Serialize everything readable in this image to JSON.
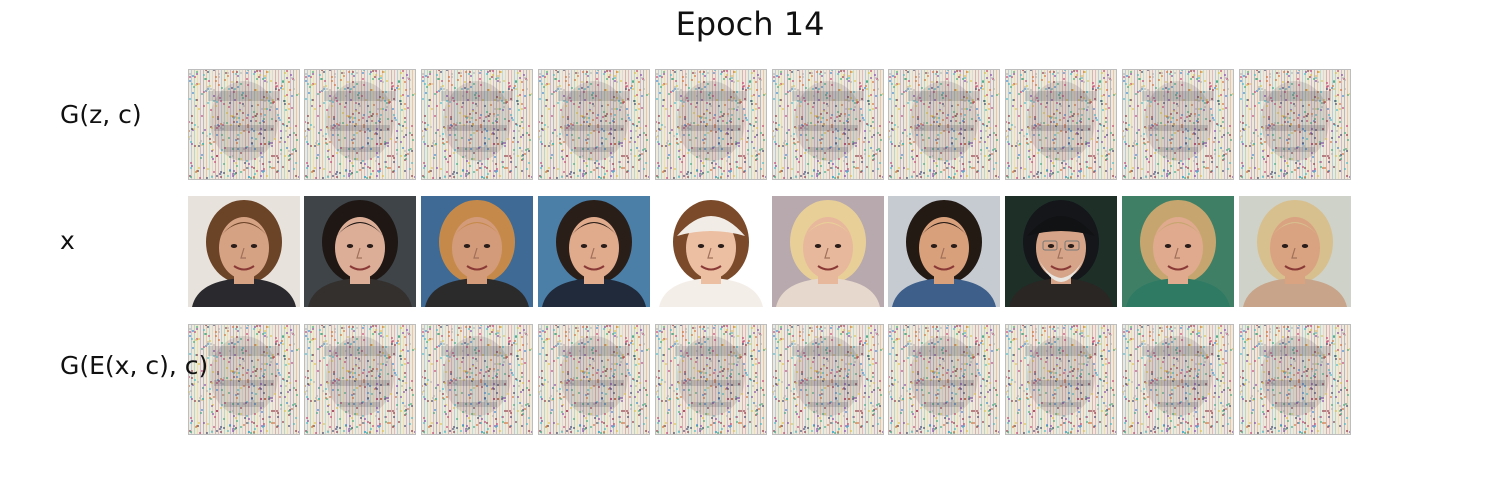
{
  "title": "Epoch 14",
  "rows": [
    {
      "label": "G(z, c)",
      "kind": "generated-samples",
      "tiles": [
        {
          "icon": "noisy-generated-face"
        },
        {
          "icon": "noisy-generated-face"
        },
        {
          "icon": "noisy-generated-face"
        },
        {
          "icon": "noisy-generated-face"
        },
        {
          "icon": "noisy-generated-face"
        },
        {
          "icon": "noisy-generated-face"
        },
        {
          "icon": "noisy-generated-face"
        },
        {
          "icon": "noisy-generated-face"
        },
        {
          "icon": "noisy-generated-face"
        },
        {
          "icon": "noisy-generated-face"
        }
      ]
    },
    {
      "label": "x",
      "kind": "real-photos",
      "tiles": [
        {
          "icon": "face-photo",
          "background": "#e8e2dc",
          "hair": "#6b4327",
          "skin": "#d6a284",
          "clothing": "#2a2a2e"
        },
        {
          "icon": "face-photo",
          "background": "#3e4448",
          "hair": "#1e1714",
          "skin": "#dcae98",
          "clothing": "#34302e"
        },
        {
          "icon": "face-photo",
          "background": "#3f6a95",
          "hair": "#c58a4a",
          "skin": "#d39b7a",
          "clothing": "#2b2b2b"
        },
        {
          "icon": "face-photo",
          "background": "#4b7fa8",
          "hair": "#2a1e18",
          "skin": "#e0aa8c",
          "clothing": "#202a3a"
        },
        {
          "icon": "face-photo",
          "background": "#ffffff",
          "hair": "#7a4a2a",
          "skin": "#ecbfa2",
          "clothing": "#f4eee8",
          "hat": "#f2ece6"
        },
        {
          "icon": "face-photo",
          "background": "#b7a9ad",
          "hair": "#e8cf98",
          "skin": "#e8b89c",
          "clothing": "#e6d8cc"
        },
        {
          "icon": "face-photo",
          "background": "#c6cbd2",
          "hair": "#241a14",
          "skin": "#d9a07c",
          "clothing": "#3d5f8a"
        },
        {
          "icon": "face-photo",
          "background": "#1e2f28",
          "hair": "#14161a",
          "skin": "#d6a488",
          "clothing": "#2a2624",
          "beard": "#e9e6e2",
          "hat": "#101214"
        },
        {
          "icon": "face-photo",
          "background": "#3f7f66",
          "hair": "#c6a66e",
          "skin": "#dfaa8e",
          "clothing": "#2e7a63"
        },
        {
          "icon": "face-photo",
          "background": "#cfd2c8",
          "hair": "#d8bf8e",
          "skin": "#d9a381",
          "clothing": "#c7a48a"
        }
      ]
    },
    {
      "label": "G(E(x, c), c)",
      "kind": "reconstructions",
      "tiles": [
        {
          "icon": "noisy-generated-face"
        },
        {
          "icon": "noisy-generated-face"
        },
        {
          "icon": "noisy-generated-face"
        },
        {
          "icon": "noisy-generated-face"
        },
        {
          "icon": "noisy-generated-face"
        },
        {
          "icon": "noisy-generated-face"
        },
        {
          "icon": "noisy-generated-face"
        },
        {
          "icon": "noisy-generated-face"
        },
        {
          "icon": "noisy-generated-face"
        },
        {
          "icon": "noisy-generated-face"
        }
      ]
    }
  ]
}
